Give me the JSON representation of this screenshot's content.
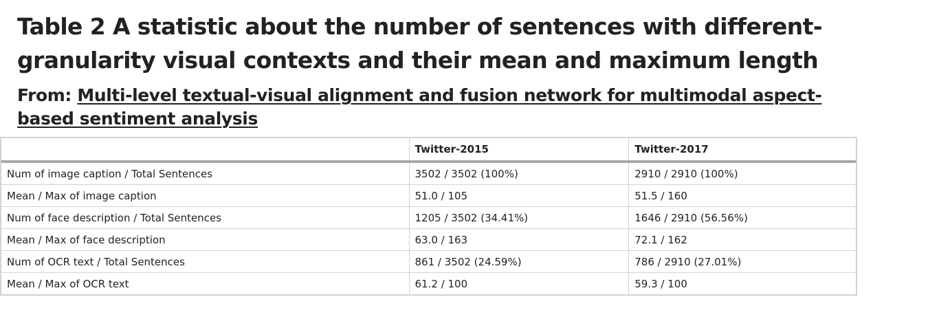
{
  "title": "Table 2 A statistic about the number of sentences with different-granularity visual contexts and their mean and maximum length",
  "from_label": "From:",
  "source_title": "Multi-level textual-visual alignment and fusion network for multimodal aspect-based sentiment analysis",
  "table": {
    "headers": [
      "",
      "Twitter-2015",
      "Twitter-2017"
    ],
    "rows": [
      [
        "Num of image caption / Total Sentences",
        "3502 / 3502 (100%)",
        "2910 / 2910 (100%)"
      ],
      [
        "Mean / Max of image caption",
        "51.0 / 105",
        "51.5 / 160"
      ],
      [
        "Num of face description / Total Sentences",
        "1205 / 3502 (34.41%)",
        "1646 / 2910 (56.56%)"
      ],
      [
        "Mean / Max of face description",
        "63.0 / 163",
        "72.1 / 162"
      ],
      [
        "Num of OCR text / Total Sentences",
        "861 / 3502 (24.59%)",
        "786 / 2910 (27.01%)"
      ],
      [
        "Mean / Max of OCR text",
        "61.2 / 100",
        "59.3 / 100"
      ]
    ]
  }
}
